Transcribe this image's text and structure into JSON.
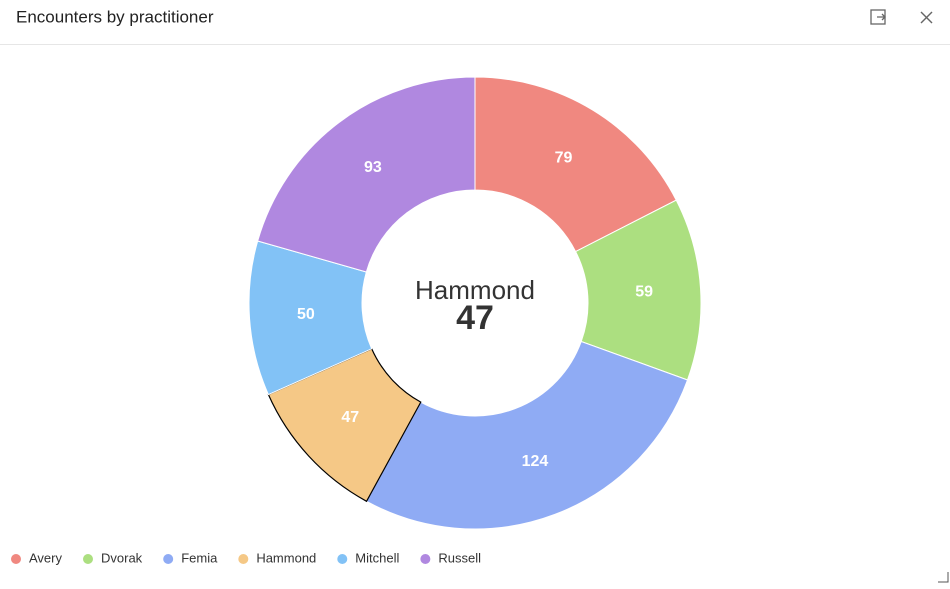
{
  "chart_data": {
    "type": "donut",
    "title": "Encounters by practitioner",
    "categories": [
      "Avery",
      "Dvorak",
      "Femia",
      "Hammond",
      "Mitchell",
      "Russell"
    ],
    "values": [
      79,
      59,
      124,
      47,
      50,
      93
    ],
    "colors": [
      "#f08880",
      "#acdf80",
      "#8fabf4",
      "#f5c886",
      "#82c2f6",
      "#b088e0"
    ],
    "legend": "bottom-left"
  }
}
